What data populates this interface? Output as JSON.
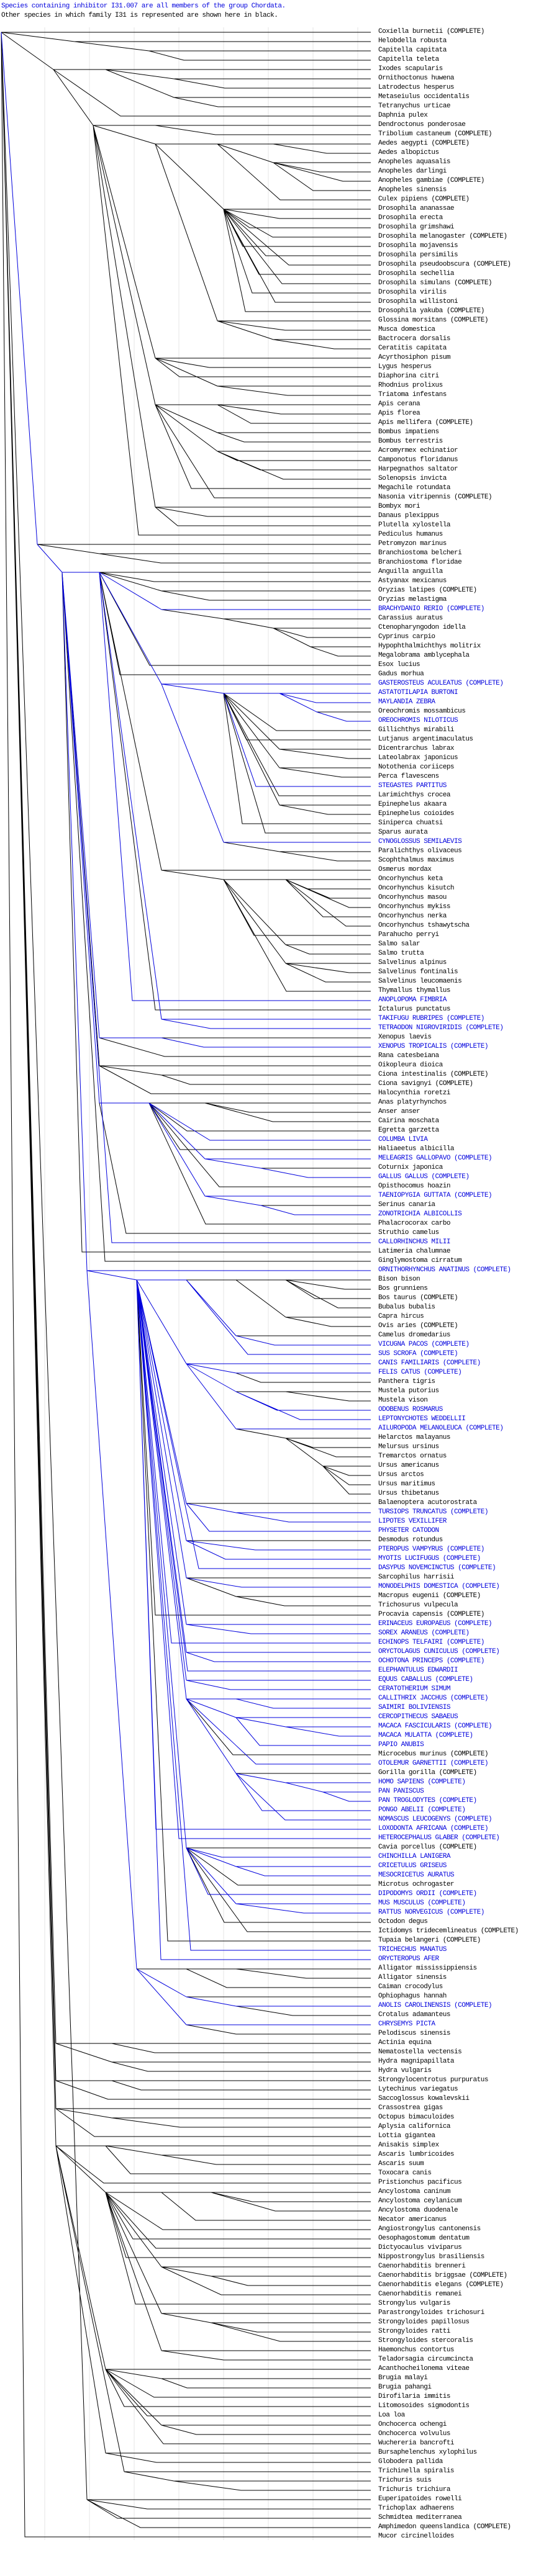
{
  "header": {
    "line1": "Species containing inhibitor I31.007 are all members of the group Chordata.",
    "line2": "Other species in which family I31 is represented are shown here in black."
  },
  "colors": {
    "highlight": "#0000dd",
    "default": "#000000",
    "gridline": "#e4e4e4",
    "background": "#ffffff"
  },
  "tree": {
    "complete_suffix": "(COMPLETE)",
    "highlighted_rows": [
      62,
      70,
      71,
      72,
      74,
      81,
      87,
      104,
      106,
      107,
      109,
      119,
      121,
      123,
      125,
      127,
      130,
      133,
      141,
      142,
      143,
      144,
      148,
      149,
      150,
      159,
      160,
      161,
      163,
      164,
      165,
      167,
      171,
      172,
      173,
      174,
      175,
      176,
      177,
      178,
      179,
      180,
      181,
      182,
      183,
      184,
      186,
      188,
      189,
      190,
      191,
      192,
      193,
      194,
      196,
      197,
      198,
      200,
      201,
      202,
      206,
      207,
      212,
      214
    ],
    "species": [
      "Coxiella burnetii (COMPLETE)",
      "Helobdella robusta",
      "Capitella capitata",
      "Capitella teleta",
      "Ixodes scapularis",
      "Ornithoctonus huwena",
      "Latrodectus hesperus",
      "Metaseiulus occidentalis",
      "Tetranychus urticae",
      "Daphnia pulex",
      "Dendroctonus ponderosae",
      "Tribolium castaneum (COMPLETE)",
      "Aedes aegypti (COMPLETE)",
      "Aedes albopictus",
      "Anopheles aquasalis",
      "Anopheles darlingi",
      "Anopheles gambiae (COMPLETE)",
      "Anopheles sinensis",
      "Culex pipiens (COMPLETE)",
      "Drosophila ananassae",
      "Drosophila erecta",
      "Drosophila grimshawi",
      "Drosophila melanogaster (COMPLETE)",
      "Drosophila mojavensis",
      "Drosophila persimilis",
      "Drosophila pseudoobscura (COMPLETE)",
      "Drosophila sechellia",
      "Drosophila simulans (COMPLETE)",
      "Drosophila virilis",
      "Drosophila willistoni",
      "Drosophila yakuba (COMPLETE)",
      "Glossina morsitans (COMPLETE)",
      "Musca domestica",
      "Bactrocera dorsalis",
      "Ceratitis capitata",
      "Acyrthosiphon pisum",
      "Lygus hesperus",
      "Diaphorina citri",
      "Rhodnius prolixus",
      "Triatoma infestans",
      "Apis cerana",
      "Apis florea",
      "Apis mellifera (COMPLETE)",
      "Bombus impatiens",
      "Bombus terrestris",
      "Acromyrmex echinatior",
      "Camponotus floridanus",
      "Harpegnathos saltator",
      "Solenopsis invicta",
      "Megachile rotundata",
      "Nasonia vitripennis (COMPLETE)",
      "Bombyx mori",
      "Danaus plexippus",
      "Plutella xylostella",
      "Pediculus humanus",
      "Petromyzon marinus",
      "Branchiostoma belcheri",
      "Branchiostoma floridae",
      "Anguilla anguilla",
      "Astyanax mexicanus",
      "Oryzias latipes (COMPLETE)",
      "Oryzias melastigma",
      "BRACHYDANIO RERIO (COMPLETE)",
      "Carassius auratus",
      "Ctenopharyngodon idella",
      "Cyprinus carpio",
      "Hypophthalmichthys molitrix",
      "Megalobrama amblycephala",
      "Esox lucius",
      "Gadus morhua",
      "GASTEROSTEUS ACULEATUS (COMPLETE)",
      "ASTATOTILAPIA BURTONI",
      "MAYLANDIA ZEBRA",
      "Oreochromis mossambicus",
      "OREOCHROMIS NILOTICUS",
      "Gillichthys mirabili",
      "Lutjanus argentimaculatus",
      "Dicentrarchus labrax",
      "Lateolabrax japonicus",
      "Notothenia coriiceps",
      "Perca flavescens",
      "STEGASTES PARTITUS",
      "Larimichthys crocea",
      "Epinephelus akaara",
      "Epinephelus coioides",
      "Siniperca chuatsi",
      "Sparus aurata",
      "CYNOGLOSSUS SEMILAEVIS",
      "Paralichthys olivaceus",
      "Scophthalmus maximus",
      "Osmerus mordax",
      "Oncorhynchus keta",
      "Oncorhynchus kisutch",
      "Oncorhynchus masou",
      "Oncorhynchus mykiss",
      "Oncorhynchus nerka",
      "Oncorhynchus tshawytscha",
      "Parahucho perryi",
      "Salmo salar",
      "Salmo trutta",
      "Salvelinus alpinus",
      "Salvelinus fontinalis",
      "Salvelinus leucomaenis",
      "Thymallus thymallus",
      "ANOPLOPOMA FIMBRIA",
      "Ictalurus punctatus",
      "TAKIFUGU RUBRIPES (COMPLETE)",
      "TETRAODON NIGROVIRIDIS (COMPLETE)",
      "Xenopus laevis",
      "XENOPUS TROPICALIS (COMPLETE)",
      "Rana catesbeiana",
      "Oikopleura dioica",
      "Ciona intestinalis (COMPLETE)",
      "Ciona savignyi (COMPLETE)",
      "Halocynthia roretzi",
      "Anas platyrhynchos",
      "Anser anser",
      "Cairina moschata",
      "Egretta garzetta",
      "COLUMBA LIVIA",
      "Haliaeetus albicilla",
      "MELEAGRIS GALLOPAVO (COMPLETE)",
      "Coturnix japonica",
      "GALLUS GALLUS (COMPLETE)",
      "Opisthocomus hoazin",
      "TAENIOPYGIA GUTTATA (COMPLETE)",
      "Serinus canaria",
      "ZONOTRICHIA ALBICOLLIS",
      "Phalacrocorax carbo",
      "Struthio camelus",
      "CALLORHINCHUS MILII",
      "Latimeria chalumnae",
      "Ginglymostoma cirratum",
      "ORNITHORHYNCHUS ANATINUS (COMPLETE)",
      "Bison bison",
      "Bos grunniens",
      "Bos taurus (COMPLETE)",
      "Bubalus bubalis",
      "Capra hircus",
      "Ovis aries (COMPLETE)",
      "Camelus dromedarius",
      "VICUGNA PACOS (COMPLETE)",
      "SUS SCROFA (COMPLETE)",
      "CANIS FAMILIARIS (COMPLETE)",
      "FELIS CATUS (COMPLETE)",
      "Panthera tigris",
      "Mustela putorius",
      "Mustela vison",
      "ODOBENUS ROSMARUS",
      "LEPTONYCHOTES WEDDELLII",
      "AILUROPODA MELANOLEUCA (COMPLETE)",
      "Helarctos malayanus",
      "Melursus ursinus",
      "Tremarctos ornatus",
      "Ursus americanus",
      "Ursus arctos",
      "Ursus maritimus",
      "Ursus thibetanus",
      "Balaenoptera acutorostrata",
      "TURSIOPS TRUNCATUS (COMPLETE)",
      "LIPOTES VEXILLIFER",
      "PHYSETER CATODON",
      "Desmodus rotundus",
      "PTEROPUS VAMPYRUS (COMPLETE)",
      "MYOTIS LUCIFUGUS (COMPLETE)",
      "DASYPUS NOVEMCINCTUS (COMPLETE)",
      "Sarcophilus harrisii",
      "MONODELPHIS DOMESTICA (COMPLETE)",
      "Macropus eugenii (COMPLETE)",
      "Trichosurus vulpecula",
      "Procavia capensis (COMPLETE)",
      "ERINACEUS EUROPAEUS (COMPLETE)",
      "SOREX ARANEUS (COMPLETE)",
      "ECHINOPS TELFAIRI (COMPLETE)",
      "ORYCTOLAGUS CUNICULUS (COMPLETE)",
      "OCHOTONA PRINCEPS (COMPLETE)",
      "ELEPHANTULUS EDWARDII",
      "EQUUS CABALLUS (COMPLETE)",
      "CERATOTHERIUM SIMUM",
      "CALLITHRIX JACCHUS (COMPLETE)",
      "SAIMIRI BOLIVIENSIS",
      "CERCOPITHECUS SABAEUS",
      "MACACA FASCICULARIS (COMPLETE)",
      "MACACA MULATTA (COMPLETE)",
      "PAPIO ANUBIS",
      "Microcebus murinus (COMPLETE)",
      "OTOLEMUR GARNETTII (COMPLETE)",
      "Gorilla gorilla (COMPLETE)",
      "HOMO SAPIENS (COMPLETE)",
      "PAN PANISCUS",
      "PAN TROGLODYTES (COMPLETE)",
      "PONGO ABELII (COMPLETE)",
      "NOMASCUS LEUCOGENYS (COMPLETE)",
      "LOXODONTA AFRICANA (COMPLETE)",
      "HETEROCEPHALUS GLABER (COMPLETE)",
      "Cavia porcellus (COMPLETE)",
      "CHINCHILLA LANIGERA",
      "CRICETULUS GRISEUS",
      "MESOCRICETUS AURATUS",
      "Microtus ochrogaster",
      "DIPODOMYS ORDII (COMPLETE)",
      "MUS MUSCULUS (COMPLETE)",
      "RATTUS NORVEGICUS (COMPLETE)",
      "Octodon degus",
      "Ictidomys tridecemlineatus (COMPLETE)",
      "Tupaia belangeri (COMPLETE)",
      "TRICHECHUS MANATUS",
      "ORYCTEROPUS AFER",
      "Alligator mississippiensis",
      "Alligator sinensis",
      "Caiman crocodylus",
      "Ophiophagus hannah",
      "ANOLIS CAROLINENSIS (COMPLETE)",
      "Crotalus adamanteus",
      "CHRYSEMYS PICTA",
      "Pelodiscus sinensis",
      "Actinia equina",
      "Nematostella vectensis",
      "Hydra magnipapillata",
      "Hydra vulgaris",
      "Strongylocentrotus purpuratus",
      "Lytechinus variegatus",
      "Saccoglossus kowalevskii",
      "Crassostrea gigas",
      "Octopus bimaculoides",
      "Aplysia californica",
      "Lottia gigantea",
      "Anisakis simplex",
      "Ascaris lumbricoides",
      "Ascaris suum",
      "Toxocara canis",
      "Pristionchus pacificus",
      "Ancylostoma caninum",
      "Ancylostoma ceylanicum",
      "Ancylostoma duodenale",
      "Necator americanus",
      "Angiostrongylus cantonensis",
      "Oesophagostomum dentatum",
      "Dictyocaulus viviparus",
      "Nippostrongylus brasiliensis",
      "Caenorhabditis brenneri",
      "Caenorhabditis briggsae (COMPLETE)",
      "Caenorhabditis elegans (COMPLETE)",
      "Caenorhabditis remanei",
      "Strongylus vulgaris",
      "Parastrongyloides trichosuri",
      "Strongyloides papillosus",
      "Strongyloides ratti",
      "Strongyloides stercoralis",
      "Haemonchus contortus",
      "Teladorsagia circumcincta",
      "Acanthocheilonema viteae",
      "Brugia malayi",
      "Brugia pahangi",
      "Dirofilaria immitis",
      "Litomosoides sigmodontis",
      "Loa loa",
      "Onchocerca ochengi",
      "Onchocerca volvulus",
      "Wuchereria bancrofti",
      "Bursaphelenchus xylophilus",
      "Globodera pallida",
      "Trichinella spiralis",
      "Trichuris suis",
      "Trichuris trichiura",
      "Euperipatoides rowelli",
      "Trichoplax adhaerens",
      "Schmidtea mediterranea",
      "Amphimedon queenslandica (COMPLETE)",
      "Mucor circinelloides"
    ]
  }
}
